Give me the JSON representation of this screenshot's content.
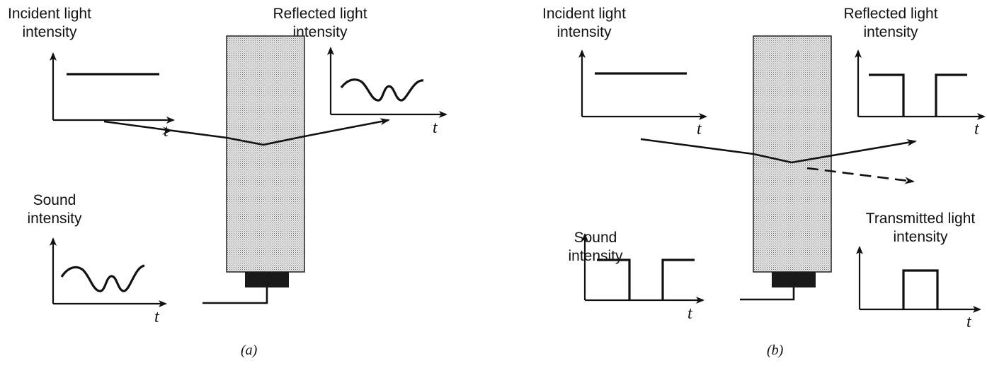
{
  "panel_a": {
    "caption": "(a)",
    "incident": {
      "label_line1": "Incident light",
      "label_line2": "intensity",
      "axis": "t"
    },
    "reflected": {
      "label_line1": "Reflected light",
      "label_line2": "intensity",
      "axis": "t"
    },
    "sound": {
      "label_line1": "Sound",
      "label_line2": "intensity",
      "axis": "t"
    }
  },
  "panel_b": {
    "caption": "(b)",
    "incident": {
      "label_line1": "Incident light",
      "label_line2": "intensity",
      "axis": "t"
    },
    "reflected": {
      "label_line1": "Reflected light",
      "label_line2": "intensity",
      "axis": "t"
    },
    "sound": {
      "label_line1": "Sound",
      "label_line2": "intensity",
      "axis": "t"
    },
    "transmitted": {
      "label_line1": "Transmitted light",
      "label_line2": "intensity",
      "axis": "t"
    }
  },
  "colors": {
    "ink": "#111111",
    "medium": "#d4d4d4",
    "transducer": "#1a1a1a"
  }
}
